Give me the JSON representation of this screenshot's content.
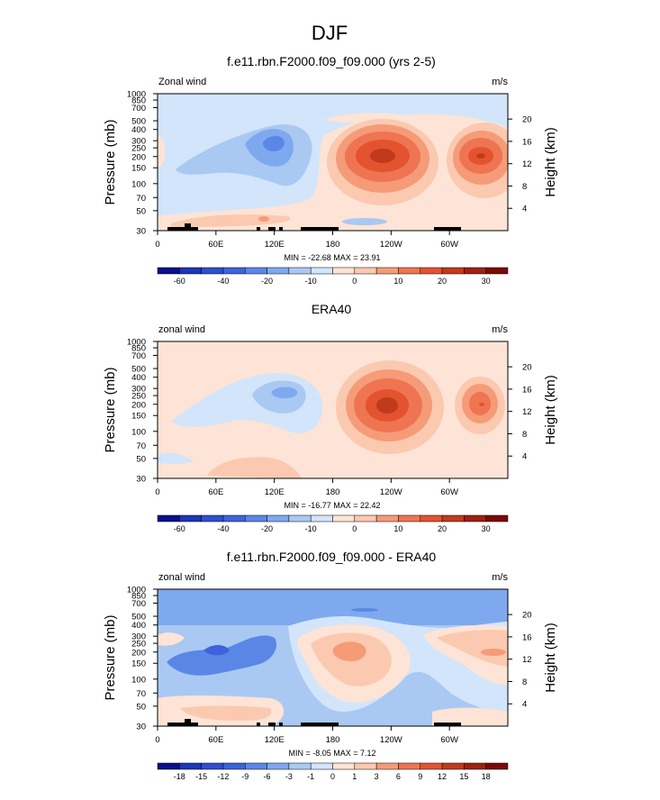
{
  "main_title": "DJF",
  "lon_ticks": [
    "0",
    "60E",
    "120E",
    "180",
    "120W",
    "60W"
  ],
  "pressure_ticks": [
    "30",
    "50",
    "70",
    "100",
    "150",
    "200",
    "250",
    "300",
    "400",
    "500",
    "700",
    "850",
    "1000"
  ],
  "height_ticks": [
    "4",
    "8",
    "12",
    "16",
    "20"
  ],
  "ylabel": "Pressure (mb)",
  "y2label": "Height (km)",
  "chart_data": [
    {
      "type": "heatmap",
      "title": "f.e11.rbn.F2000.f09_f09.000 (yrs 2-5)",
      "left_label": "Zonal wind",
      "right_label": "m/s",
      "stats": "MIN = -22.68  MAX =  23.91",
      "min": -22.68,
      "max": 23.91,
      "colorbar_ticks": [
        "-60",
        "-40",
        "-20",
        "-10",
        "0",
        "10",
        "20",
        "30"
      ],
      "levels": [
        -70,
        -60,
        -50,
        -40,
        -30,
        -20,
        -15,
        -10,
        -5,
        0,
        5,
        10,
        15,
        20,
        25,
        30,
        35
      ],
      "features": [
        {
          "lon": 130,
          "p": 110,
          "value": -22.68
        },
        {
          "lon": 240,
          "p": 150,
          "value": 23.91
        },
        {
          "lon": 325,
          "p": 150,
          "value": 18
        }
      ]
    },
    {
      "type": "heatmap",
      "title": "ERA40",
      "left_label": "zonal wind",
      "right_label": "m/s",
      "stats": "MIN = -16.77  MAX =  22.42",
      "min": -16.77,
      "max": 22.42,
      "colorbar_ticks": [
        "-60",
        "-40",
        "-20",
        "-10",
        "0",
        "10",
        "20",
        "30"
      ],
      "levels": [
        -70,
        -60,
        -50,
        -40,
        -30,
        -20,
        -15,
        -10,
        -5,
        0,
        5,
        10,
        15,
        20,
        25,
        30,
        35
      ],
      "features": [
        {
          "lon": 130,
          "p": 110,
          "value": -16.77
        },
        {
          "lon": 235,
          "p": 180,
          "value": 22.42
        },
        {
          "lon": 325,
          "p": 150,
          "value": 16
        }
      ]
    },
    {
      "type": "heatmap",
      "title": "f.e11.rbn.F2000.f09_f09.000 - ERA40",
      "left_label": "zonal wind",
      "right_label": "m/s",
      "stats": "MIN = -8.05  MAX =  7.12",
      "min": -8.05,
      "max": 7.12,
      "colorbar_ticks": [
        "-18",
        "-15",
        "-12",
        "-9",
        "-6",
        "-3",
        "-1",
        "0",
        "1",
        "3",
        "6",
        "9",
        "12",
        "15",
        "18"
      ],
      "levels": [
        -21,
        -18,
        -15,
        -12,
        -9,
        -6,
        -3,
        -1,
        0,
        1,
        3,
        6,
        9,
        12,
        15,
        18,
        21
      ],
      "features": [
        {
          "lon": 110,
          "p": 150,
          "value": -8.05
        },
        {
          "lon": 220,
          "p": 150,
          "value": 7.12
        },
        {
          "lon": 330,
          "p": 150,
          "value": 6
        }
      ]
    }
  ]
}
